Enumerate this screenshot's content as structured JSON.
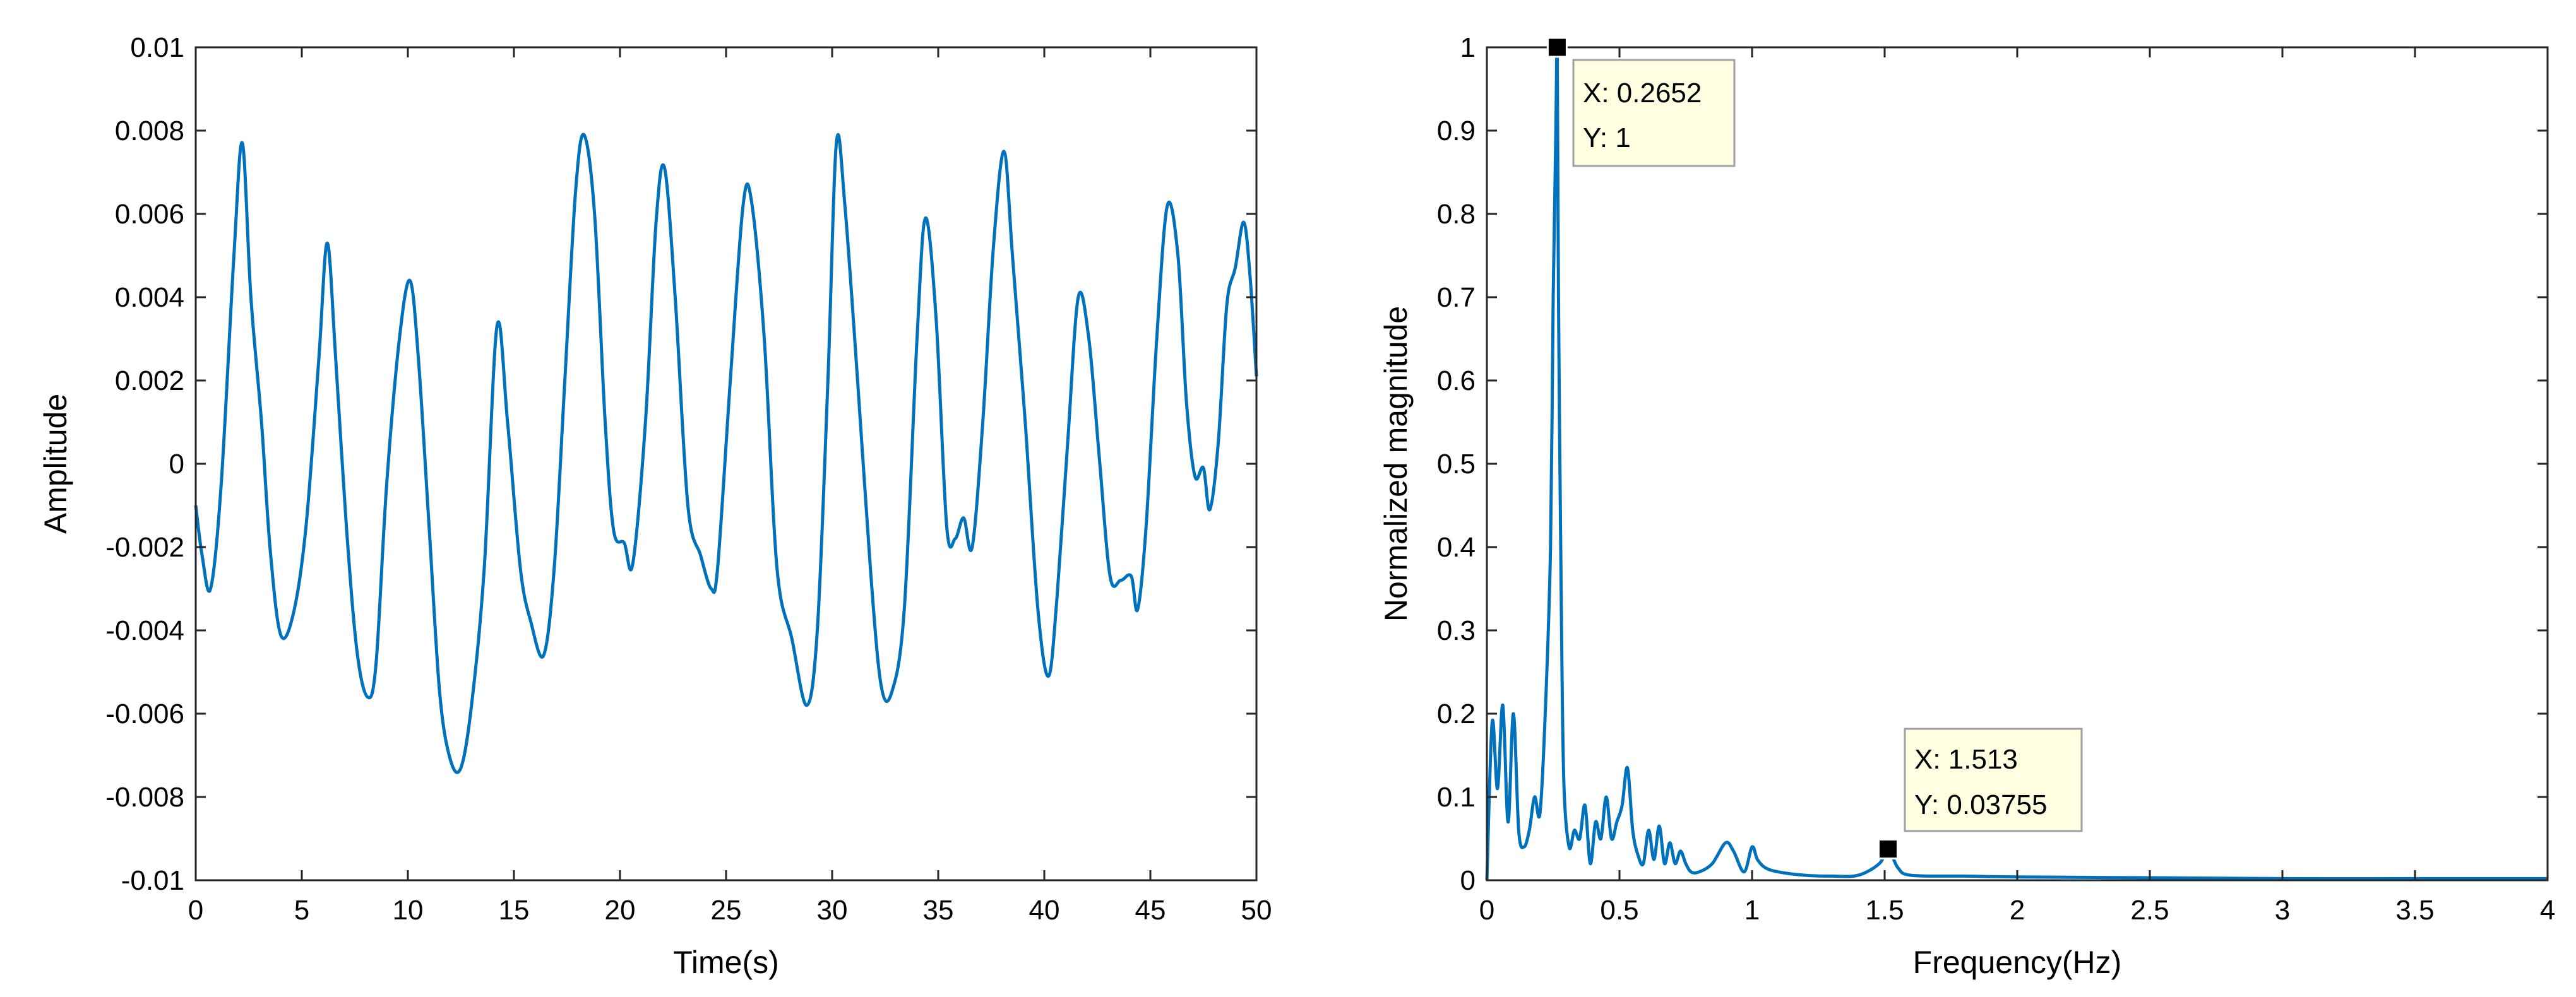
{
  "chart_data": [
    {
      "type": "line",
      "xlabel": "Time(s)",
      "ylabel": "Amplitude",
      "xlim": [
        0,
        50
      ],
      "ylim": [
        -0.01,
        0.01
      ],
      "xticks": [
        0,
        5,
        10,
        15,
        20,
        25,
        30,
        35,
        40,
        45,
        50
      ],
      "xtick_labels": [
        "0",
        "5",
        "10",
        "15",
        "20",
        "25",
        "30",
        "35",
        "40",
        "45",
        "50"
      ],
      "yticks": [
        -0.01,
        -0.008,
        -0.006,
        -0.004,
        -0.002,
        0,
        0.002,
        0.004,
        0.006,
        0.008,
        0.01
      ],
      "ytick_labels": [
        "-0.01",
        "-0.008",
        "-0.006",
        "-0.004",
        "-0.002",
        "0",
        "0.002",
        "0.004",
        "0.006",
        "0.008",
        "0.01"
      ],
      "grid": false,
      "line_color": "#0072BD",
      "series": [
        {
          "x": [
            0,
            0.3,
            0.7,
            1.2,
            1.8,
            2.2,
            2.6,
            3.1,
            3.5,
            4.0,
            4.6,
            5.2,
            5.8,
            6.2,
            6.6,
            7.1,
            7.6,
            8.1,
            8.5,
            9.0,
            9.6,
            10.1,
            10.5,
            11.0,
            11.5,
            12.0,
            12.5,
            13.0,
            13.6,
            14.2,
            14.7,
            15.3,
            15.8,
            16.4,
            16.9,
            17.4,
            17.9,
            18.3,
            18.8,
            19.3,
            19.7,
            20.2,
            20.6,
            21.2,
            21.7,
            22.1,
            22.6,
            23.2,
            23.8,
            24.3,
            24.6,
            25.2,
            25.8,
            26.2,
            26.8,
            27.4,
            28.1,
            28.8,
            29.3,
            29.8,
            30.2,
            30.6,
            31.2,
            31.8,
            32.3,
            32.8,
            33.4,
            34.0,
            34.4,
            34.9,
            35.4,
            35.8,
            36.2,
            36.6,
            37.1,
            37.6,
            38.1,
            38.5,
            39.1,
            39.7,
            40.2,
            40.6,
            41.1,
            41.6,
            42.1,
            42.6,
            43.1,
            43.6,
            44.1,
            44.4,
            44.8,
            45.3,
            45.8,
            46.3,
            46.7,
            47.1,
            47.5,
            47.8,
            48.2,
            48.6,
            49.0,
            49.4,
            49.7,
            50.0
          ],
          "y": [
            -0.001,
            -0.0022,
            -0.003,
            -0.0005,
            0.005,
            0.0077,
            0.004,
            0.001,
            -0.002,
            -0.0041,
            -0.0036,
            -0.0015,
            0.0025,
            0.0053,
            0.0025,
            -0.0015,
            -0.0045,
            -0.0056,
            -0.0048,
            -0.0005,
            0.003,
            0.0044,
            0.0025,
            -0.0015,
            -0.0055,
            -0.0071,
            -0.0073,
            -0.0058,
            -0.0025,
            0.0033,
            0.001,
            -0.0025,
            -0.0038,
            -0.0046,
            -0.0025,
            0.002,
            0.0065,
            0.0079,
            0.006,
            0.001,
            -0.0016,
            -0.0019,
            -0.0024,
            0.001,
            0.0058,
            0.0071,
            0.004,
            -0.001,
            -0.0022,
            -0.003,
            -0.0025,
            0.002,
            0.0062,
            0.0063,
            0.003,
            -0.0025,
            -0.0042,
            -0.0058,
            -0.004,
            0.002,
            0.0077,
            0.0062,
            0.002,
            -0.0025,
            -0.0053,
            -0.0055,
            -0.0035,
            0.003,
            0.0059,
            0.0035,
            -0.0015,
            -0.0018,
            -0.0013,
            -0.002,
            0.001,
            0.0052,
            0.0075,
            0.005,
            0.001,
            -0.0035,
            -0.0051,
            -0.0032,
            0.0005,
            0.004,
            0.003,
            0.0001,
            -0.0027,
            -0.0028,
            -0.0027,
            -0.0035,
            -0.0015,
            0.003,
            0.0062,
            0.005,
            0.0015,
            -0.0003,
            -0.0001,
            -0.0011,
            0.0005,
            0.0038,
            0.0047,
            0.0058,
            0.0045,
            0.0021
          ]
        }
      ]
    },
    {
      "type": "line",
      "xlabel": "Frequency(Hz)",
      "ylabel": "Normalized magnitude",
      "xlim": [
        0,
        4
      ],
      "ylim": [
        0,
        1
      ],
      "xticks": [
        0,
        0.5,
        1,
        1.5,
        2,
        2.5,
        3,
        3.5,
        4
      ],
      "xtick_labels": [
        "0",
        "0.5",
        "1",
        "1.5",
        "2",
        "2.5",
        "3",
        "3.5",
        "4"
      ],
      "yticks": [
        0,
        0.1,
        0.2,
        0.3,
        0.4,
        0.5,
        0.6,
        0.7,
        0.8,
        0.9,
        1
      ],
      "ytick_labels": [
        "0",
        "0.1",
        "0.2",
        "0.3",
        "0.4",
        "0.5",
        "0.6",
        "0.7",
        "0.8",
        "0.9",
        "1"
      ],
      "grid": false,
      "line_color": "#0072BD",
      "series": [
        {
          "x": [
            0,
            0.02,
            0.04,
            0.06,
            0.08,
            0.1,
            0.12,
            0.14,
            0.16,
            0.18,
            0.2,
            0.22,
            0.24,
            0.25,
            0.26,
            0.2652,
            0.27,
            0.28,
            0.29,
            0.31,
            0.33,
            0.35,
            0.37,
            0.39,
            0.41,
            0.43,
            0.45,
            0.47,
            0.49,
            0.51,
            0.53,
            0.55,
            0.57,
            0.59,
            0.61,
            0.63,
            0.65,
            0.67,
            0.69,
            0.71,
            0.73,
            0.75,
            0.77,
            0.8,
            0.85,
            0.9,
            0.93,
            0.97,
            1.0,
            1.02,
            1.05,
            1.1,
            1.2,
            1.3,
            1.4,
            1.48,
            1.513,
            1.55,
            1.6,
            1.8,
            2.0,
            2.5,
            3.0,
            3.5,
            4.0
          ],
          "y": [
            0.0,
            0.19,
            0.11,
            0.21,
            0.07,
            0.2,
            0.06,
            0.04,
            0.06,
            0.1,
            0.08,
            0.2,
            0.4,
            0.7,
            0.9,
            1.0,
            0.7,
            0.35,
            0.12,
            0.04,
            0.06,
            0.05,
            0.09,
            0.02,
            0.07,
            0.05,
            0.1,
            0.05,
            0.07,
            0.09,
            0.135,
            0.06,
            0.03,
            0.02,
            0.06,
            0.025,
            0.065,
            0.02,
            0.045,
            0.02,
            0.035,
            0.02,
            0.01,
            0.01,
            0.02,
            0.045,
            0.035,
            0.01,
            0.04,
            0.025,
            0.015,
            0.01,
            0.006,
            0.005,
            0.006,
            0.02,
            0.03755,
            0.015,
            0.006,
            0.005,
            0.004,
            0.003,
            0.002,
            0.002,
            0.002
          ]
        }
      ],
      "datatips": [
        {
          "x": 0.2652,
          "y": 1,
          "x_text": "X: 0.2652",
          "y_text": "Y: 1"
        },
        {
          "x": 1.513,
          "y": 0.03755,
          "x_text": "X: 1.513",
          "y_text": "Y: 0.03755"
        }
      ]
    }
  ]
}
